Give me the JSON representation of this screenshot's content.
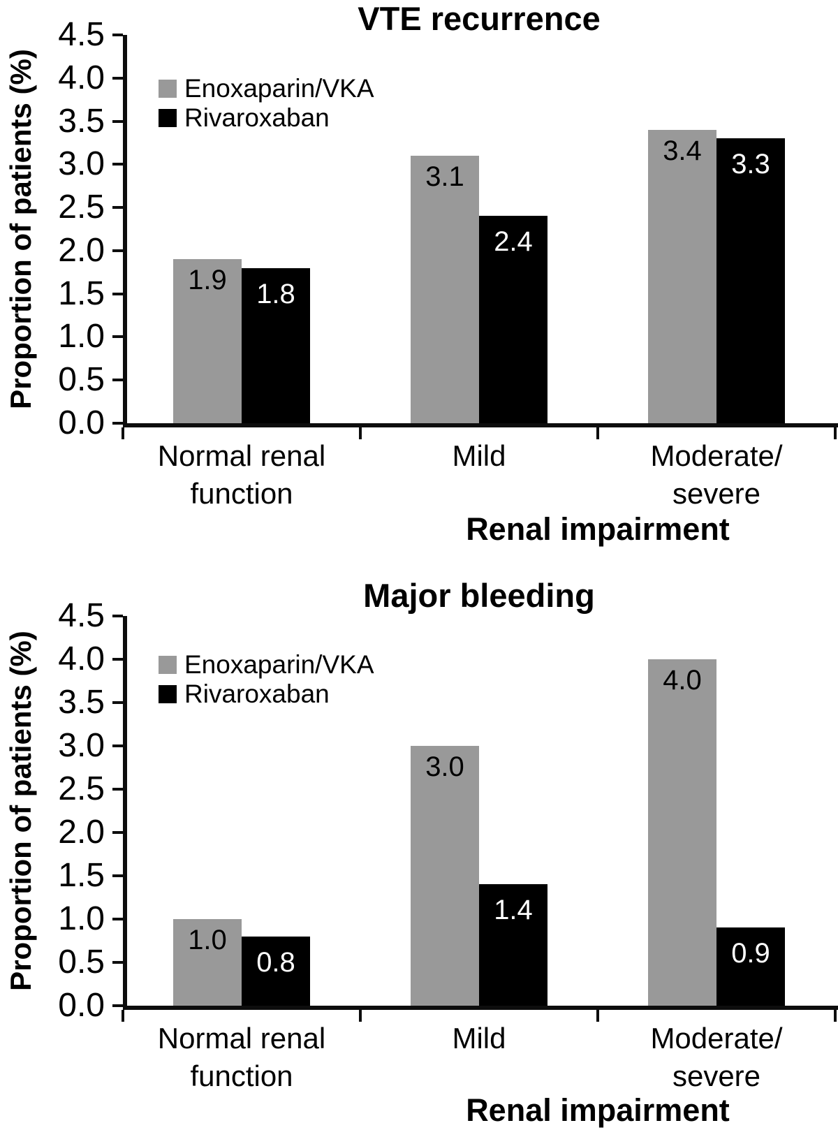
{
  "figure": {
    "description": "Two stacked grouped bar charts comparing Enoxaparin/VKA vs Rivaroxaban by renal impairment category"
  },
  "chart_data": [
    {
      "type": "bar",
      "title": "VTE recurrence",
      "ylabel": "Proportion of patients (%)",
      "xlabel": "Renal impairment",
      "categories": [
        [
          "Normal renal",
          "function"
        ],
        [
          "Mild"
        ],
        [
          "Moderate/",
          "severe"
        ]
      ],
      "series": [
        {
          "name": "Enoxaparin/VKA",
          "color": "#999999",
          "label_color": "#000000",
          "values": [
            1.9,
            3.1,
            3.4
          ]
        },
        {
          "name": "Rivaroxaban",
          "color": "#000000",
          "label_color": "#ffffff",
          "values": [
            1.8,
            2.4,
            3.3
          ]
        }
      ],
      "ylim": [
        0,
        4.5
      ],
      "ytick_step": 0.5,
      "yticks": [
        "0.0",
        "0.5",
        "1.0",
        "1.5",
        "2.0",
        "2.5",
        "3.0",
        "3.5",
        "4.0",
        "4.5"
      ],
      "grid": false,
      "legend_position": "top-left"
    },
    {
      "type": "bar",
      "title": "Major bleeding",
      "ylabel": "Proportion of patients (%)",
      "xlabel": "Renal impairment",
      "categories": [
        [
          "Normal renal",
          "function"
        ],
        [
          "Mild"
        ],
        [
          "Moderate/",
          "severe"
        ]
      ],
      "series": [
        {
          "name": "Enoxaparin/VKA",
          "color": "#999999",
          "label_color": "#000000",
          "values": [
            1.0,
            3.0,
            4.0
          ]
        },
        {
          "name": "Rivaroxaban",
          "color": "#000000",
          "label_color": "#ffffff",
          "values": [
            0.8,
            1.4,
            0.9
          ]
        }
      ],
      "ylim": [
        0,
        4.5
      ],
      "ytick_step": 0.5,
      "yticks": [
        "0.0",
        "0.5",
        "1.0",
        "1.5",
        "2.0",
        "2.5",
        "3.0",
        "3.5",
        "4.0",
        "4.5"
      ],
      "grid": false,
      "legend_position": "top-left"
    }
  ]
}
